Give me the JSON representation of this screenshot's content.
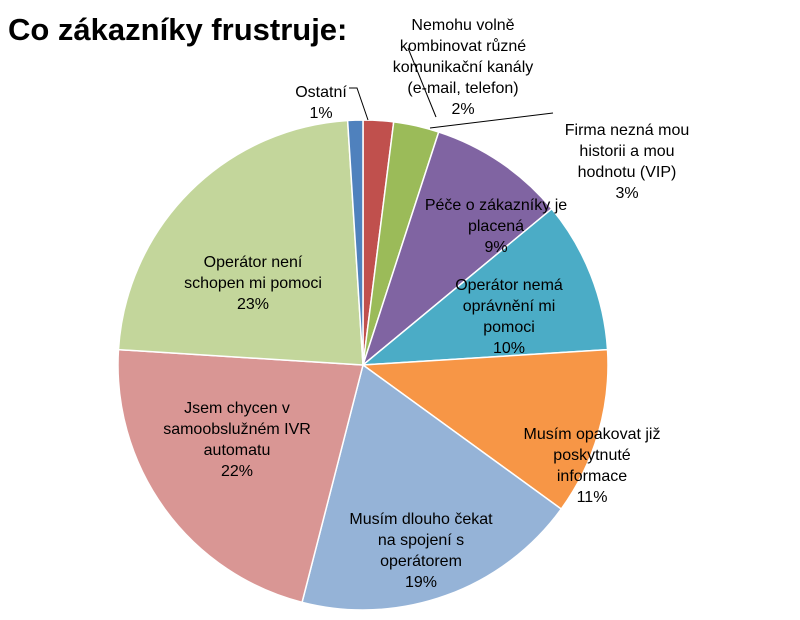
{
  "chart_data": {
    "type": "pie",
    "title": "Co zákazníky frustruje:",
    "start_angle_deg": 0,
    "direction": "clockwise",
    "slices": [
      {
        "lines": [
          "Nemohu volně",
          "kombinovat různé",
          "komunikační kanály",
          "(e-mail, telefon)"
        ],
        "pct_label": "2%",
        "value": 2,
        "color": "#c0504d"
      },
      {
        "lines": [
          "Firma nezná mou",
          "historii a mou",
          "hodnotu (VIP)"
        ],
        "pct_label": "3%",
        "value": 3,
        "color": "#9bbb59"
      },
      {
        "lines": [
          "Péče o zákazníky je",
          "placená"
        ],
        "pct_label": "9%",
        "value": 9,
        "color": "#8064a2"
      },
      {
        "lines": [
          "Operátor nemá",
          "oprávnění mi",
          "pomoci"
        ],
        "pct_label": "10%",
        "value": 10,
        "color": "#4bacc6"
      },
      {
        "lines": [
          "Musím opakovat již",
          "poskytnuté",
          "informace"
        ],
        "pct_label": "11%",
        "value": 11,
        "color": "#f79646"
      },
      {
        "lines": [
          "Musím dlouho čekat",
          "na spojení s",
          "operátorem"
        ],
        "pct_label": "19%",
        "value": 19,
        "color": "#95b3d7"
      },
      {
        "lines": [
          "Jsem chycen v",
          "samoobslužném IVR",
          "automatu"
        ],
        "pct_label": "22%",
        "value": 22,
        "color": "#d99694"
      },
      {
        "lines": [
          "Operátor není",
          "schopen mi pomoci"
        ],
        "pct_label": "23%",
        "value": 23,
        "color": "#c3d69b"
      },
      {
        "lines": [
          "Ostatní"
        ],
        "pct_label": "1%",
        "value": 1,
        "color": "#4f81bd"
      }
    ]
  }
}
